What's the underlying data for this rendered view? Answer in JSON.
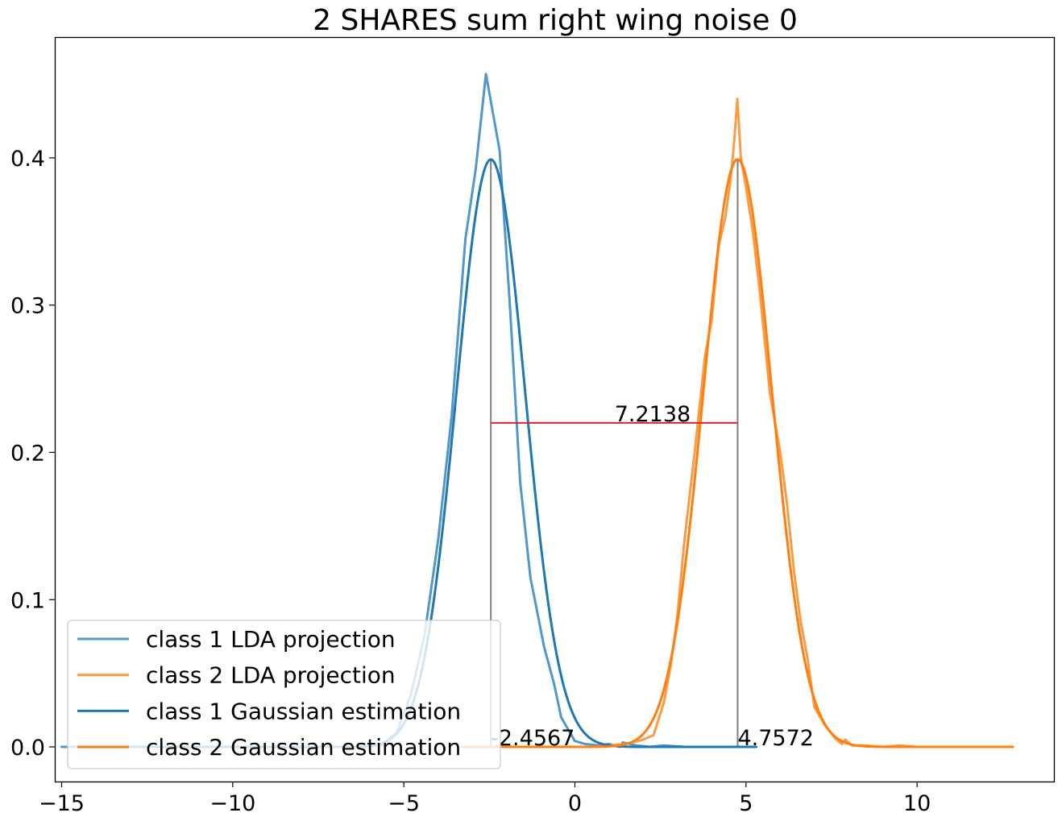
{
  "chart_data": {
    "type": "line",
    "title": "2 SHARES sum right wing noise 0",
    "xlabel": "",
    "ylabel": "",
    "xlim": [
      -15.2,
      14.0
    ],
    "ylim": [
      -0.0235,
      0.482
    ],
    "x_ticks": [
      -15,
      -10,
      -5,
      0,
      5,
      10
    ],
    "x_tick_labels": [
      "−15",
      "−10",
      "−5",
      "0",
      "5",
      "10"
    ],
    "y_ticks": [
      0.0,
      0.1,
      0.2,
      0.3,
      0.4
    ],
    "y_tick_labels": [
      "0.0",
      "0.1",
      "0.2",
      "0.3",
      "0.4"
    ],
    "grid": false,
    "legend": {
      "position": "lower-left"
    },
    "series": [
      {
        "name": "class 1 LDA projection",
        "color": "#5098c9",
        "points": [
          [
            -15.0,
            0.0
          ],
          [
            -14.0,
            0.0
          ],
          [
            -13.0,
            0.0
          ],
          [
            -12.0,
            0.0
          ],
          [
            -11.0,
            0.0
          ],
          [
            -10.0,
            0.0
          ],
          [
            -9.0,
            0.0
          ],
          [
            -8.0,
            0.0
          ],
          [
            -7.0,
            0.0
          ],
          [
            -6.0,
            0.0
          ],
          [
            -5.6,
            0.002
          ],
          [
            -5.2,
            0.01
          ],
          [
            -4.8,
            0.035
          ],
          [
            -4.4,
            0.075
          ],
          [
            -4.0,
            0.14
          ],
          [
            -3.6,
            0.225
          ],
          [
            -3.2,
            0.345
          ],
          [
            -2.9,
            0.392
          ],
          [
            -2.6,
            0.457
          ],
          [
            -2.2,
            0.405
          ],
          [
            -1.9,
            0.3
          ],
          [
            -1.6,
            0.18
          ],
          [
            -1.3,
            0.115
          ],
          [
            -0.9,
            0.068
          ],
          [
            -0.6,
            0.042
          ],
          [
            -0.4,
            0.02
          ],
          [
            -0.2,
            0.012
          ],
          [
            0.0,
            0.004
          ],
          [
            0.3,
            0.002
          ],
          [
            0.7,
            0.001
          ],
          [
            1.0,
            0.002
          ],
          [
            1.3,
            0.0
          ],
          [
            1.4,
            0.003
          ],
          [
            1.8,
            0.001
          ],
          [
            2.2,
            0.0
          ],
          [
            2.6,
            0.001
          ],
          [
            3.2,
            0.0
          ],
          [
            4.0,
            0.0
          ],
          [
            5.0,
            0.0
          ]
        ]
      },
      {
        "name": "class 2 LDA projection",
        "color": "#fd9a45",
        "points": [
          [
            -2.2,
            0.0
          ],
          [
            -1.5,
            0.0
          ],
          [
            -1.0,
            0.0
          ],
          [
            -0.5,
            0.0
          ],
          [
            0.0,
            0.0
          ],
          [
            0.5,
            0.0
          ],
          [
            1.0,
            0.001
          ],
          [
            1.5,
            0.002
          ],
          [
            2.0,
            0.005
          ],
          [
            2.3,
            0.008
          ],
          [
            2.6,
            0.03
          ],
          [
            2.8,
            0.055
          ],
          [
            3.0,
            0.09
          ],
          [
            3.2,
            0.14
          ],
          [
            3.5,
            0.2
          ],
          [
            3.8,
            0.265
          ],
          [
            4.0,
            0.29
          ],
          [
            4.2,
            0.34
          ],
          [
            4.4,
            0.36
          ],
          [
            4.55,
            0.385
          ],
          [
            4.65,
            0.41
          ],
          [
            4.75,
            0.44
          ],
          [
            4.85,
            0.4
          ],
          [
            5.0,
            0.38
          ],
          [
            5.2,
            0.35
          ],
          [
            5.4,
            0.31
          ],
          [
            5.7,
            0.24
          ],
          [
            6.0,
            0.2
          ],
          [
            6.2,
            0.165
          ],
          [
            6.4,
            0.12
          ],
          [
            6.6,
            0.085
          ],
          [
            6.8,
            0.06
          ],
          [
            7.0,
            0.027
          ],
          [
            7.3,
            0.015
          ],
          [
            7.6,
            0.006
          ],
          [
            7.8,
            0.002
          ],
          [
            7.9,
            0.005
          ],
          [
            8.1,
            0.001
          ],
          [
            8.5,
            0.001
          ],
          [
            9.0,
            0.0
          ],
          [
            9.5,
            0.001
          ],
          [
            10.0,
            0.0
          ],
          [
            10.5,
            0.0
          ],
          [
            11.0,
            0.0
          ],
          [
            11.5,
            0.0
          ],
          [
            12.0,
            0.0
          ],
          [
            12.5,
            0.0
          ],
          [
            12.8,
            0.0
          ]
        ]
      },
      {
        "name": "class 1 Gaussian estimation",
        "color": "#1f77b4",
        "gaussian": {
          "mu": -2.4567,
          "sigma": 1.0,
          "xrange": [
            -14.0,
            5.3
          ]
        }
      },
      {
        "name": "class 2 Gaussian estimation",
        "color": "#ff7f0e",
        "gaussian": {
          "mu": 4.7572,
          "sigma": 1.0,
          "xrange": [
            -3.3,
            12.8
          ]
        }
      }
    ],
    "annotations": [
      {
        "type": "vline",
        "x": -2.4567,
        "y0": 0.0,
        "y1": 0.399,
        "color": "#808080"
      },
      {
        "type": "vline",
        "x": 4.7572,
        "y0": 0.0,
        "y1": 0.399,
        "color": "#808080"
      },
      {
        "type": "hline",
        "x0": -2.4567,
        "x1": 4.7572,
        "y": 0.22,
        "color": "#d62728"
      },
      {
        "type": "text",
        "text": "7.2138",
        "x": 1.16,
        "y": 0.22
      },
      {
        "type": "text",
        "text": "-2.4567",
        "x": -2.4567,
        "y": 0.0
      },
      {
        "type": "text",
        "text": "4.7572",
        "x": 4.7572,
        "y": 0.0
      }
    ]
  }
}
